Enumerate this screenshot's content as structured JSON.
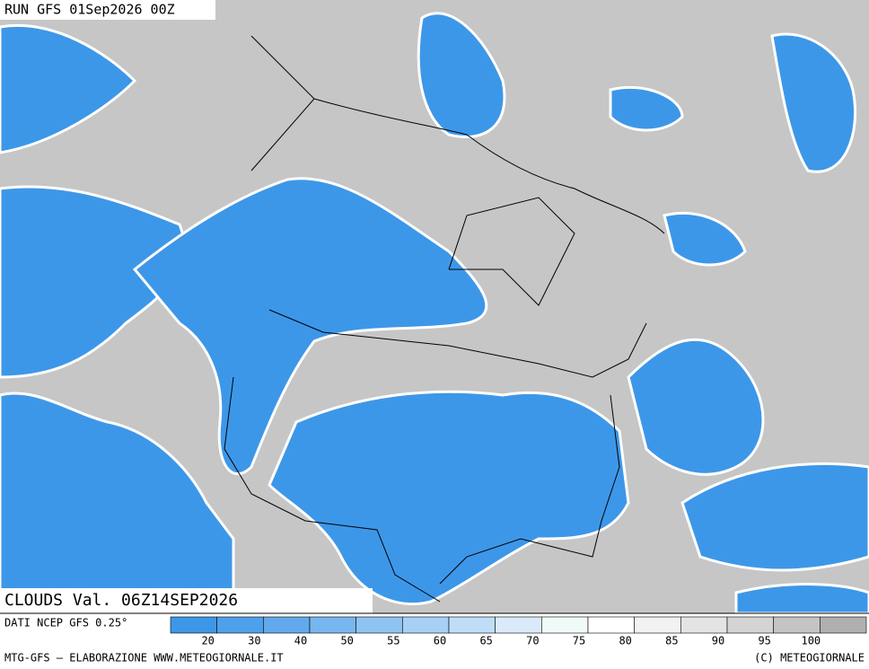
{
  "header": {
    "run": "RUN GFS 01Sep2026 00Z"
  },
  "map": {
    "valid_label": "CLOUDS Val. 06Z14SEP2026"
  },
  "legend": {
    "source": "DATI NCEP GFS 0.25°",
    "labels": [
      20,
      30,
      40,
      50,
      55,
      60,
      65,
      70,
      75,
      80,
      85,
      90,
      95,
      100
    ],
    "colors": [
      "#3d97e8",
      "#4fa0ea",
      "#62aaed",
      "#78b6ef",
      "#8fc3f2",
      "#a7d0f5",
      "#c0ddf8",
      "#daeafb",
      "#f0fbf9",
      "#ffffff",
      "#f2f2f2",
      "#e4e4e4",
      "#d4d4d4",
      "#c4c4c4",
      "#b0b0b0"
    ]
  },
  "footer": {
    "left": "MTG-GFS – ELABORAZIONE WWW.METEOGIORNALE.IT",
    "right": "(C) METEOGIORNALE"
  }
}
